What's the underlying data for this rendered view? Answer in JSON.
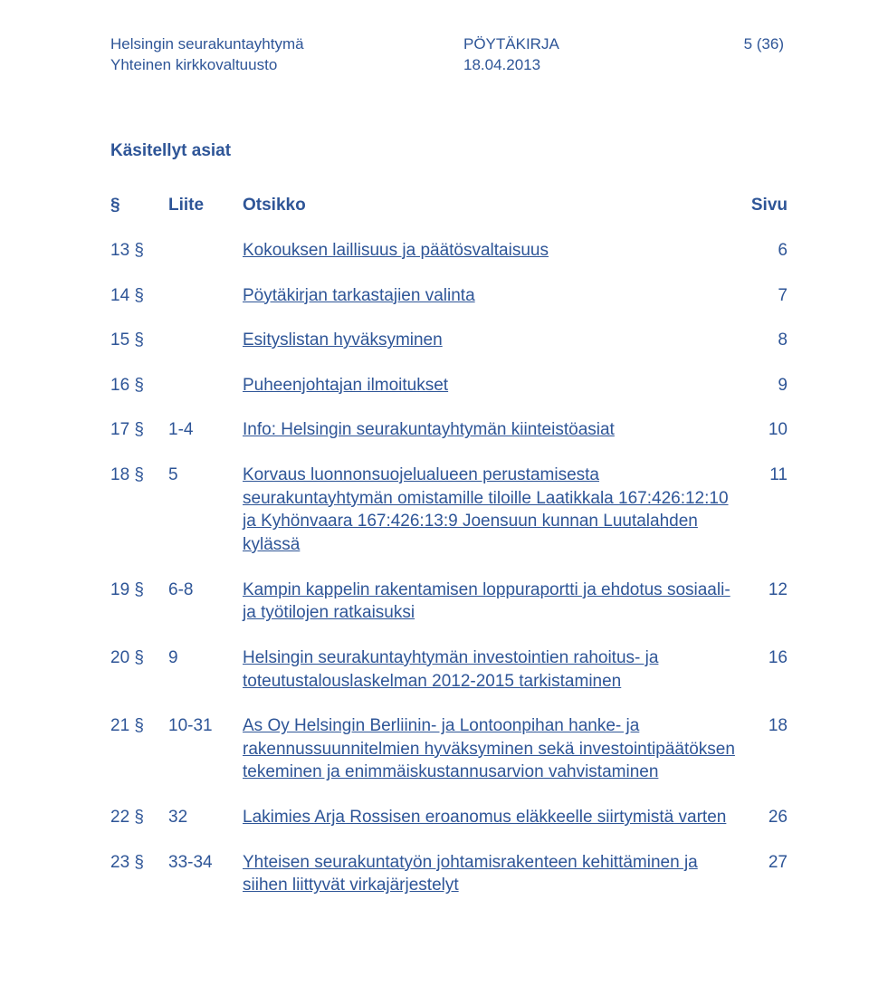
{
  "header": {
    "org_line1": "Helsingin seurakuntayhtymä",
    "org_line2": "Yhteinen kirkkovaltuusto",
    "doc_type": "PÖYTÄKIRJA",
    "doc_date": "18.04.2013",
    "page_label": "5 (36)"
  },
  "section_title": "Käsitellyt asiat",
  "columns": {
    "sym": "§",
    "liite": "Liite",
    "otsikko": "Otsikko",
    "sivu": "Sivu"
  },
  "rows": [
    {
      "sym": "13 §",
      "liite": "",
      "title": "Kokouksen laillisuus ja päätösvaltaisuus",
      "page": "6"
    },
    {
      "sym": "14 §",
      "liite": "",
      "title": "Pöytäkirjan tarkastajien valinta",
      "page": "7"
    },
    {
      "sym": "15 §",
      "liite": "",
      "title": "Esityslistan hyväksyminen",
      "page": "8"
    },
    {
      "sym": "16 §",
      "liite": "",
      "title": "Puheenjohtajan ilmoitukset",
      "page": "9"
    },
    {
      "sym": "17 §",
      "liite": "1-4",
      "title": "Info: Helsingin seurakuntayhtymän kiinteistöasiat",
      "page": "10"
    },
    {
      "sym": "18 §",
      "liite": "5",
      "title": "Korvaus luonnonsuojelualueen perustamisesta seurakuntayhtymän omistamille tiloille Laatikkala 167:426:12:10 ja Kyhönvaara 167:426:13:9 Joensuun kunnan Luutalahden kylässä",
      "page": "11"
    },
    {
      "sym": "19 §",
      "liite": "6-8",
      "title": "Kampin kappelin rakentamisen loppuraportti ja ehdotus sosiaali- ja työtilojen ratkaisuksi",
      "page": "12"
    },
    {
      "sym": "20 §",
      "liite": "9",
      "title": "Helsingin seurakuntayhtymän investointien rahoitus- ja toteutustalouslaskelman 2012-2015 tarkistaminen",
      "page": "16"
    },
    {
      "sym": "21 §",
      "liite": "10-31",
      "title": "As Oy Helsingin Berliinin- ja Lontoonpihan hanke- ja rakennussuunnitelmien hyväksyminen sekä investointipäätöksen tekeminen ja enimmäiskustannusarvion vahvistaminen",
      "page": "18"
    },
    {
      "sym": "22 §",
      "liite": "32",
      "title": "Lakimies Arja Rossisen eroanomus eläkkeelle siirtymistä varten",
      "page": "26"
    },
    {
      "sym": "23 §",
      "liite": "33-34",
      "title": "Yhteisen seurakuntatyön johtamisrakenteen kehittäminen ja siihen liittyvät virkajärjestelyt",
      "page": "27"
    }
  ]
}
